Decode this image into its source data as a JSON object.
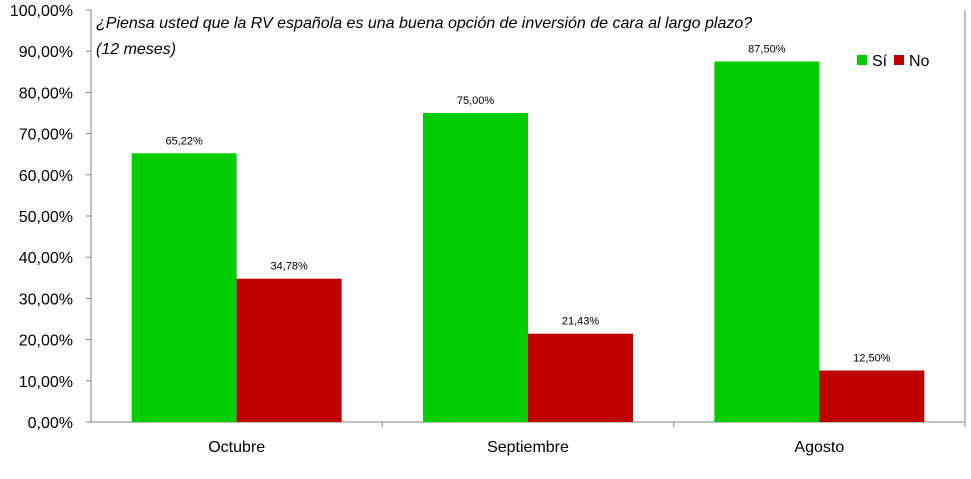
{
  "chart_data": {
    "type": "bar",
    "title": "¿Piensa usted que la RV española es una buena opción de inversión de cara al largo plazo?",
    "subtitle": "(12 meses)",
    "categories": [
      "Octubre",
      "Septiembre",
      "Agosto"
    ],
    "series": [
      {
        "name": "Sí",
        "values": [
          65.22,
          75.0,
          87.5
        ],
        "labels": [
          "65,22%",
          "75,00%",
          "87,50%"
        ],
        "color": "#00cc00"
      },
      {
        "name": "No",
        "values": [
          34.78,
          21.43,
          12.5
        ],
        "labels": [
          "34,78%",
          "21,43%",
          "12,50%"
        ],
        "color": "#c00000"
      }
    ],
    "y_ticks": [
      "0,00%",
      "10,00%",
      "20,00%",
      "30,00%",
      "40,00%",
      "50,00%",
      "60,00%",
      "70,00%",
      "80,00%",
      "90,00%",
      "100,00%"
    ],
    "ylim": [
      0,
      100
    ],
    "grid": false,
    "legend_position": "top-right",
    "axis_color": "#808080"
  }
}
